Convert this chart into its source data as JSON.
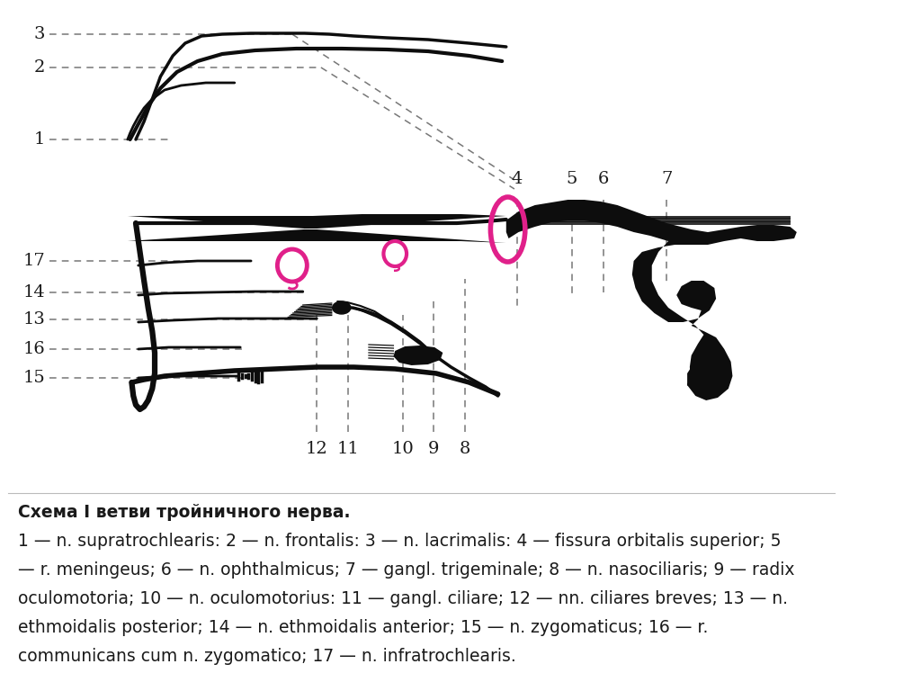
{
  "caption_lines": [
    "Схема I ветви тройничного нерва.",
    "1 — n. supratrochlearis: 2 — n. frontalis: 3 — n. lacrimalis: 4 — fissura orbitalis superior; 5",
    "— r. meningeus; 6 — n. ophthalmicus; 7 — gangl. trigeminale; 8 — n. nasociliaris; 9 — radix",
    "oculomotoria; 10 — n. oculomotorius: 11 — gangl. ciliare; 12 — nn. ciliares breves; 13 — n.",
    "ethmoidalis posterior; 14 — n. ethmoidalis anterior; 15 — n. zygomaticus; 16 — r.",
    "communicans cum n. zygomatico; 17 — n. infratrochlearis."
  ],
  "bg_color": "#ffffff",
  "label_color": "#1a1a1a",
  "dashed_color": "#777777",
  "pink_color": "#e0208a",
  "nerve_color": "#0d0d0d",
  "label_fontsize": 14,
  "caption_fontsize": 13.5
}
